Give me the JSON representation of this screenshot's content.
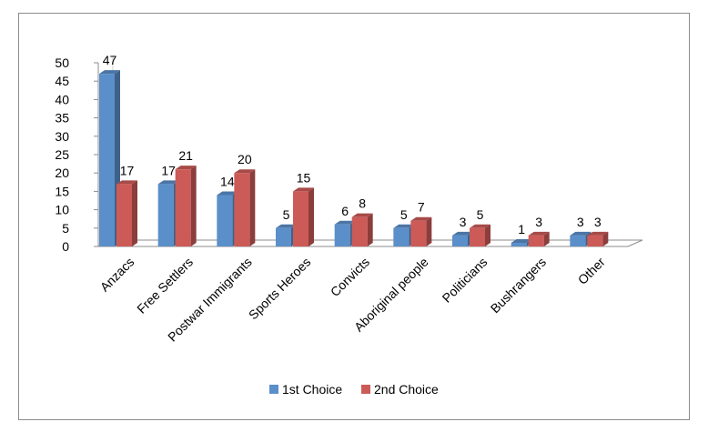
{
  "chart_data": {
    "type": "bar",
    "title": "",
    "xlabel": "",
    "ylabel": "",
    "categories": [
      "Anzacs",
      "Free Settlers",
      "Postwar Immigrants",
      "Sports Heroes",
      "Convicts",
      "Aboriginal people",
      "Politicians",
      "Bushrangers",
      "Other"
    ],
    "series": [
      {
        "name": "1st Choice",
        "values": [
          47,
          17,
          14,
          5,
          6,
          5,
          3,
          1,
          3
        ],
        "color": "#5b8fc9"
      },
      {
        "name": "2nd Choice",
        "values": [
          17,
          21,
          20,
          15,
          8,
          7,
          5,
          3,
          3
        ],
        "color": "#cc5b58"
      }
    ],
    "ylim": [
      0,
      50
    ],
    "yticks": [
      0,
      5,
      10,
      15,
      20,
      25,
      30,
      35,
      40,
      45,
      50
    ],
    "grid": false,
    "legend_position": "bottom",
    "style": "3d"
  }
}
